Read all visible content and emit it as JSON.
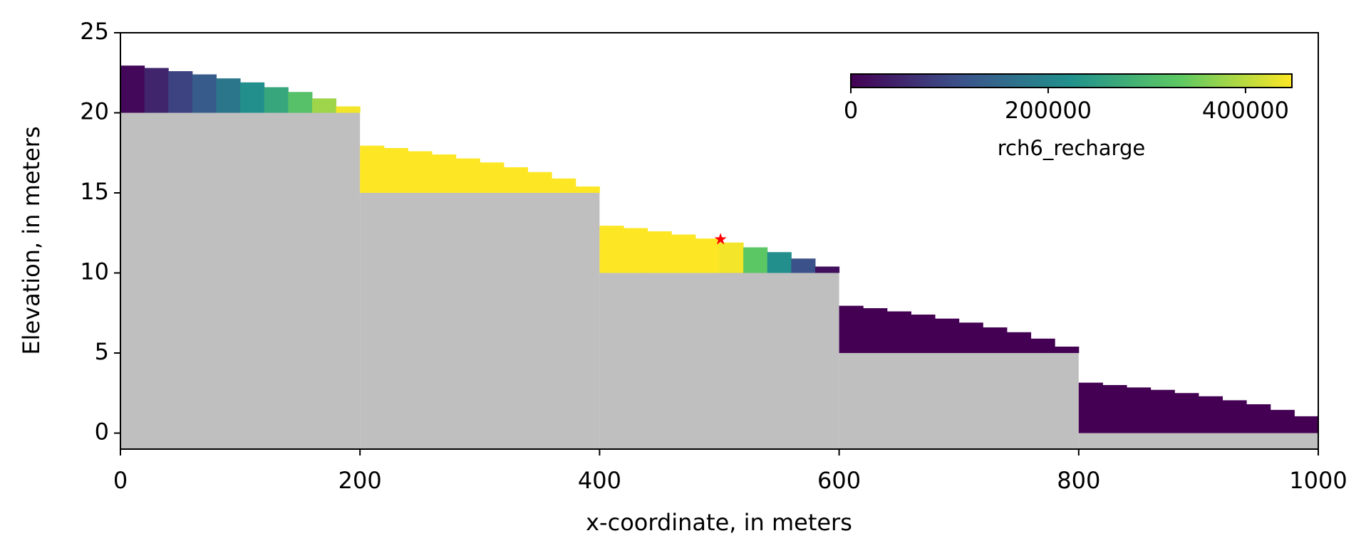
{
  "chart_data": {
    "type": "cross_section",
    "xlabel": "x-coordinate, in meters",
    "ylabel": "Elevation, in meters",
    "xlim": [
      0,
      1000
    ],
    "ylim": [
      -1,
      25
    ],
    "xticks": [
      0,
      200,
      400,
      600,
      800,
      1000
    ],
    "yticks": [
      0,
      5,
      10,
      15,
      20,
      25
    ],
    "colormap": "viridis",
    "bedrock_color": "#bfbfbf",
    "steps": [
      {
        "x": [
          0,
          200
        ],
        "bottom": 20
      },
      {
        "x": [
          200,
          400
        ],
        "bottom": 15
      },
      {
        "x": [
          400,
          600
        ],
        "bottom": 10
      },
      {
        "x": [
          600,
          800
        ],
        "bottom": 5
      },
      {
        "x": [
          800,
          1000
        ],
        "bottom": 0
      }
    ],
    "cells": {
      "x": [
        10,
        30,
        50,
        70,
        90,
        110,
        130,
        150,
        170,
        190,
        210,
        230,
        250,
        270,
        290,
        310,
        330,
        350,
        370,
        390,
        410,
        430,
        450,
        470,
        490,
        510,
        530,
        550,
        570,
        590,
        610,
        630,
        650,
        670,
        690,
        710,
        730,
        750,
        770,
        790,
        810,
        830,
        850,
        870,
        890,
        910,
        930,
        950,
        970,
        990
      ],
      "head": [
        22.95,
        22.8,
        22.6,
        22.4,
        22.15,
        21.9,
        21.6,
        21.3,
        20.9,
        20.4,
        17.95,
        17.8,
        17.6,
        17.4,
        17.15,
        16.9,
        16.6,
        16.3,
        15.9,
        15.4,
        12.95,
        12.8,
        12.6,
        12.4,
        12.15,
        11.9,
        11.6,
        11.3,
        10.9,
        10.4,
        7.95,
        7.8,
        7.6,
        7.4,
        7.15,
        6.9,
        6.6,
        6.3,
        5.9,
        5.4,
        3.15,
        3.0,
        2.85,
        2.7,
        2.5,
        2.3,
        2.05,
        1.8,
        1.45,
        1.05
      ],
      "recharge": [
        10000,
        50000,
        90000,
        130000,
        175000,
        220000,
        265000,
        320000,
        380000,
        440000,
        447000,
        447000,
        447000,
        447000,
        447000,
        447000,
        447000,
        447000,
        447000,
        447000,
        447000,
        447000,
        447000,
        447000,
        447000,
        440000,
        330000,
        220000,
        110000,
        20000,
        0,
        0,
        0,
        0,
        0,
        0,
        0,
        0,
        0,
        0,
        0,
        0,
        0,
        0,
        0,
        0,
        0,
        0,
        0,
        0
      ]
    },
    "marker": {
      "x": 501,
      "y": 12.1,
      "color": "red"
    },
    "colorbar": {
      "label": "rch6_recharge",
      "lim": [
        0,
        447000
      ],
      "ticks": [
        0,
        200000,
        400000
      ]
    }
  }
}
